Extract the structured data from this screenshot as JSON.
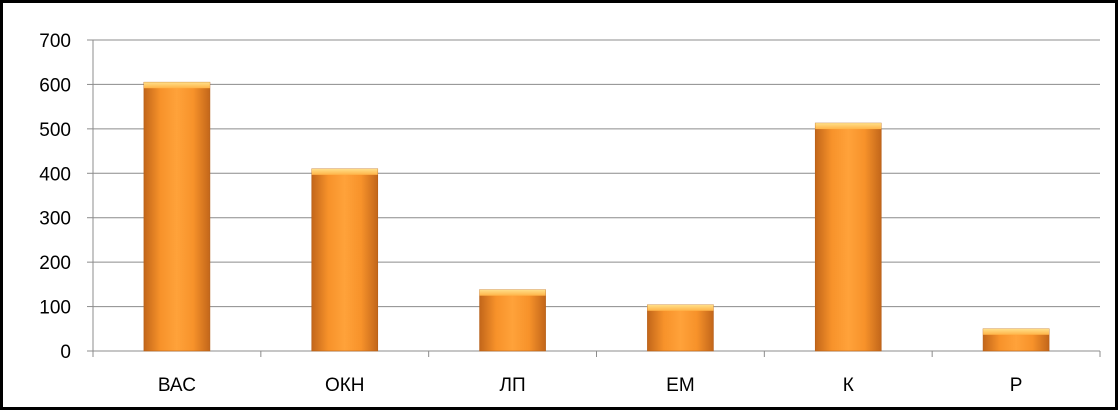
{
  "chart_data": {
    "type": "bar",
    "categories": [
      "ВАС",
      "ОКН",
      "ЛП",
      "ЕМ",
      "К",
      "Р"
    ],
    "values": [
      605,
      410,
      138,
      104,
      513,
      50
    ],
    "title": "",
    "xlabel": "",
    "ylabel": "",
    "ylim": [
      0,
      700
    ],
    "yticks": [
      "0",
      "100",
      "200",
      "300",
      "400",
      "500",
      "600",
      "700"
    ],
    "grid": true,
    "legend": "none",
    "bar_color_light": "#ffb347",
    "bar_color_mid": "#f7922a",
    "bar_color_dark": "#c2661a"
  }
}
